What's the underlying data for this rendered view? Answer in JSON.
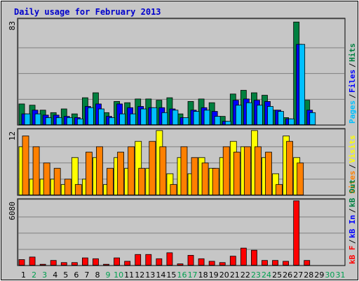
{
  "title": "Daily usage for February 2013",
  "colors": {
    "title": "#0000cc",
    "hits": "#008040",
    "files": "#0000ff",
    "pages": "#00c0ff",
    "visits": "#ffff00",
    "sites": "#ff8000",
    "kbin": "#0000ff",
    "kbout": "#008040",
    "kbf": "#ff0000",
    "weekday_label": "#000000",
    "weekend_label": "#00a050"
  },
  "chart_data": [
    {
      "type": "bar",
      "panel": "hits-files-pages",
      "y_max_label": "83",
      "ylim": [
        0,
        83
      ],
      "legend": [
        {
          "text": "Pages",
          "color": "#00c0ff"
        },
        {
          "text": "Files",
          "color": "#0000ff"
        },
        {
          "text": "Hits",
          "color": "#008040"
        }
      ],
      "series": [
        {
          "name": "Hits",
          "color": "#008040",
          "values": [
            17,
            16,
            12,
            10,
            13,
            9,
            22,
            26,
            10,
            19,
            18,
            21,
            21,
            20,
            22,
            9,
            19,
            21,
            18,
            7,
            25,
            28,
            26,
            24,
            12,
            6,
            83,
            20,
            0,
            0,
            0
          ]
        },
        {
          "name": "Files",
          "color": "#0000ff",
          "values": [
            9,
            12,
            8,
            8,
            7,
            6,
            15,
            17,
            7,
            17,
            14,
            15,
            14,
            14,
            13,
            6,
            12,
            14,
            11,
            3,
            20,
            21,
            20,
            19,
            12,
            5,
            65,
            12,
            0,
            0,
            0
          ]
        },
        {
          "name": "Pages",
          "color": "#00c0ff",
          "values": [
            9,
            9,
            6,
            6,
            6,
            5,
            14,
            13,
            6,
            9,
            9,
            13,
            14,
            10,
            12,
            6,
            11,
            12,
            7,
            3,
            16,
            18,
            16,
            15,
            11,
            5,
            65,
            10,
            0,
            0,
            0
          ]
        }
      ],
      "x": [
        1,
        2,
        3,
        4,
        5,
        6,
        7,
        8,
        9,
        10,
        11,
        12,
        13,
        14,
        15,
        16,
        17,
        18,
        19,
        20,
        21,
        22,
        23,
        24,
        25,
        26,
        27,
        28,
        29,
        30,
        31
      ]
    },
    {
      "type": "bar",
      "panel": "visits-sites",
      "y_max_label": "12",
      "ylim": [
        0,
        12
      ],
      "legend": [
        {
          "text": "Sites",
          "color": "#ff8000"
        },
        {
          "text": "Visits",
          "color": "#ffff00"
        }
      ],
      "series": [
        {
          "name": "Visits",
          "color": "#ffff00",
          "values": [
            9,
            3,
            3,
            3,
            2,
            7,
            3,
            7,
            2,
            7,
            5,
            10,
            5,
            12,
            4,
            7,
            4,
            7,
            5,
            7,
            10,
            9,
            12,
            7,
            4,
            11,
            7,
            0,
            0,
            0,
            0
          ]
        },
        {
          "name": "Sites",
          "color": "#ff8000",
          "values": [
            11,
            9,
            6,
            5,
            3,
            2,
            8,
            9,
            5,
            8,
            9,
            5,
            10,
            9,
            2,
            9,
            7,
            6,
            5,
            9,
            8,
            9,
            9,
            8,
            2,
            10,
            6,
            0,
            0,
            0,
            0
          ]
        }
      ],
      "x": [
        1,
        2,
        3,
        4,
        5,
        6,
        7,
        8,
        9,
        10,
        11,
        12,
        13,
        14,
        15,
        16,
        17,
        18,
        19,
        20,
        21,
        22,
        23,
        24,
        25,
        26,
        27,
        28,
        29,
        30,
        31
      ]
    },
    {
      "type": "bar",
      "panel": "kbytes",
      "y_max_label": "6080",
      "ylim": [
        0,
        6080
      ],
      "legend": [
        {
          "text": "kB F",
          "color": "#ff0000"
        },
        {
          "text": "kB In",
          "color": "#0000ff"
        },
        {
          "text": "kB Out",
          "color": "#008040"
        }
      ],
      "series": [
        {
          "name": "kB F",
          "color": "#ff0000",
          "values": [
            560,
            800,
            120,
            480,
            280,
            280,
            720,
            640,
            120,
            720,
            400,
            1040,
            1040,
            640,
            1200,
            160,
            960,
            640,
            400,
            280,
            880,
            1640,
            1440,
            480,
            480,
            400,
            6080,
            480,
            0,
            0,
            0
          ]
        }
      ],
      "x": [
        1,
        2,
        3,
        4,
        5,
        6,
        7,
        8,
        9,
        10,
        11,
        12,
        13,
        14,
        15,
        16,
        17,
        18,
        19,
        20,
        21,
        22,
        23,
        24,
        25,
        26,
        27,
        28,
        29,
        30,
        31
      ]
    }
  ],
  "day_labels": [
    "1",
    "2",
    "3",
    "4",
    "5",
    "6",
    "7",
    "8",
    "9",
    "10",
    "11",
    "12",
    "13",
    "14",
    "15",
    "16",
    "17",
    "18",
    "19",
    "20",
    "21",
    "22",
    "23",
    "24",
    "25",
    "26",
    "27",
    "28",
    "29",
    "30",
    "31"
  ],
  "weekend_days": [
    2,
    3,
    9,
    10,
    16,
    17,
    23,
    24,
    30,
    31
  ]
}
